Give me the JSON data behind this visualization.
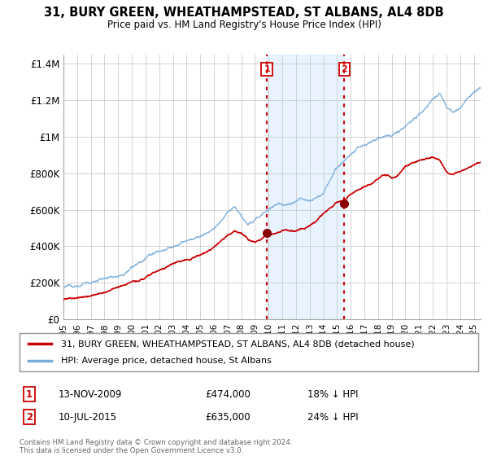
{
  "title": "31, BURY GREEN, WHEATHAMPSTEAD, ST ALBANS, AL4 8DB",
  "subtitle": "Price paid vs. HM Land Registry's House Price Index (HPI)",
  "ylabel_ticks": [
    "£0",
    "£200K",
    "£400K",
    "£600K",
    "£800K",
    "£1M",
    "£1.2M",
    "£1.4M"
  ],
  "ytick_values": [
    0,
    200000,
    400000,
    600000,
    800000,
    1000000,
    1200000,
    1400000
  ],
  "ylim": [
    0,
    1450000
  ],
  "xlim_start": 1995.0,
  "xlim_end": 2025.5,
  "hpi_color": "#7aaddb",
  "price_color": "#cc0000",
  "vline_color": "#cc0000",
  "marker_color": "#8b0000",
  "legend_label_price": "31, BURY GREEN, WHEATHAMPSTEAD, ST ALBANS, AL4 8DB (detached house)",
  "legend_label_hpi": "HPI: Average price, detached house, St Albans",
  "transaction1_date": "13-NOV-2009",
  "transaction1_price": "£474,000",
  "transaction1_pct": "18% ↓ HPI",
  "transaction1_x": 2009.87,
  "transaction1_y": 474000,
  "transaction2_date": "10-JUL-2015",
  "transaction2_price": "£635,000",
  "transaction2_pct": "24% ↓ HPI",
  "transaction2_x": 2015.53,
  "transaction2_y": 635000,
  "footnote": "Contains HM Land Registry data © Crown copyright and database right 2024.\nThis data is licensed under the Open Government Licence v3.0.",
  "background_color": "#ffffff",
  "plot_bg_color": "#ffffff",
  "grid_color": "#cccccc",
  "span_color": "#ddeeff"
}
